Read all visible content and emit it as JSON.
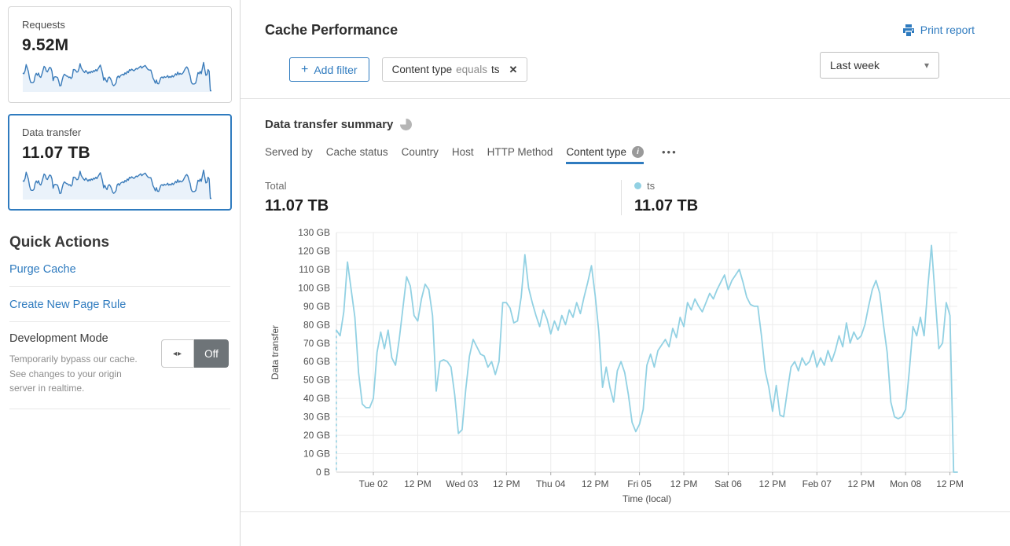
{
  "colors": {
    "accent_blue": "#2f7bbf",
    "sparkline_line": "#3b7cba",
    "sparkline_fill": "#eaf2fa",
    "series_blue": "#92d1e3",
    "selected_card_border": "#2f7bbf"
  },
  "icons": {
    "plus_glyph": "+",
    "close_glyph": "✕",
    "caret_glyph": "▾",
    "info_glyph": "i",
    "ellipsis_glyph": "•••",
    "toggle_arrows_glyph": "◂▸"
  },
  "sidebar": {
    "cards": [
      {
        "label": "Requests",
        "value": "9.52M",
        "selected": false
      },
      {
        "label": "Data transfer",
        "value": "11.07 TB",
        "selected": true
      }
    ],
    "quick_actions": {
      "title": "Quick Actions",
      "links": [
        {
          "label": "Purge Cache"
        },
        {
          "label": "Create New Page Rule"
        }
      ],
      "dev_mode": {
        "title": "Development Mode",
        "description": "Temporarily bypass our cache. See changes to your origin server in realtime.",
        "toggle_state": "Off"
      }
    }
  },
  "header": {
    "title": "Cache Performance",
    "print_label": "Print report",
    "add_filter_label": "Add filter",
    "filter_pill": {
      "field": "Content type",
      "operator": "equals",
      "value": "ts"
    },
    "time_range": "Last week"
  },
  "summary": {
    "title": "Data transfer summary",
    "tabs": [
      {
        "label": "Served by",
        "active": false
      },
      {
        "label": "Cache status",
        "active": false
      },
      {
        "label": "Country",
        "active": false
      },
      {
        "label": "Host",
        "active": false
      },
      {
        "label": "HTTP Method",
        "active": false
      },
      {
        "label": "Content type",
        "active": true,
        "info": true
      }
    ],
    "stats": [
      {
        "label": "Total",
        "value": "11.07 TB",
        "dot": false
      },
      {
        "label": "ts",
        "value": "11.07 TB",
        "dot": true
      }
    ]
  },
  "chart_data": {
    "type": "line",
    "title": "Data transfer summary",
    "xlabel": "Time (local)",
    "ylabel": "Data transfer",
    "unit": "GB",
    "ylim": [
      0,
      130
    ],
    "grid": true,
    "legend_position": "above-right",
    "y_ticks": [
      "0 B",
      "10 GB",
      "20 GB",
      "30 GB",
      "40 GB",
      "50 GB",
      "60 GB",
      "70 GB",
      "80 GB",
      "90 GB",
      "100 GB",
      "110 GB",
      "120 GB",
      "130 GB"
    ],
    "x_span_hours": 168,
    "x_ticks": [
      {
        "h": 10,
        "label": "Tue 02"
      },
      {
        "h": 22,
        "label": "12 PM"
      },
      {
        "h": 34,
        "label": "Wed 03"
      },
      {
        "h": 46,
        "label": "12 PM"
      },
      {
        "h": 58,
        "label": "Thu 04"
      },
      {
        "h": 70,
        "label": "12 PM"
      },
      {
        "h": 82,
        "label": "Fri 05"
      },
      {
        "h": 94,
        "label": "12 PM"
      },
      {
        "h": 106,
        "label": "Sat 06"
      },
      {
        "h": 118,
        "label": "12 PM"
      },
      {
        "h": 130,
        "label": "Feb 07"
      },
      {
        "h": 142,
        "label": "12 PM"
      },
      {
        "h": 154,
        "label": "Mon 08"
      },
      {
        "h": 166,
        "label": "12 PM"
      }
    ],
    "series": [
      {
        "name": "ts",
        "color": "#92d1e3",
        "total": "11.07 TB",
        "values_unit": "GB per hour (estimated from plot)",
        "values": [
          77,
          74,
          87,
          114,
          99,
          84,
          54,
          37,
          35,
          35,
          40,
          65,
          76,
          67,
          77,
          62,
          58,
          72,
          89,
          106,
          101,
          85,
          82,
          94,
          102,
          99,
          85,
          44,
          60,
          61,
          60,
          57,
          42,
          21,
          23,
          45,
          63,
          72,
          68,
          64,
          63,
          57,
          60,
          53,
          60,
          92,
          92,
          89,
          81,
          82,
          95,
          118,
          100,
          92,
          85,
          79,
          88,
          83,
          75,
          82,
          77,
          85,
          80,
          88,
          84,
          92,
          86,
          95,
          103,
          112,
          96,
          76,
          46,
          57,
          46,
          38,
          55,
          60,
          54,
          42,
          27,
          22,
          26,
          34,
          58,
          64,
          57,
          66,
          69,
          72,
          68,
          78,
          73,
          84,
          79,
          92,
          88,
          94,
          90,
          87,
          92,
          97,
          94,
          99,
          103,
          107,
          99,
          104,
          107,
          110,
          103,
          95,
          91,
          90,
          90,
          74,
          55,
          46,
          33,
          47,
          31,
          30,
          44,
          57,
          60,
          55,
          62,
          58,
          60,
          66,
          57,
          62,
          58,
          66,
          60,
          66,
          74,
          68,
          81,
          70,
          76,
          72,
          74,
          80,
          90,
          99,
          104,
          97,
          80,
          65,
          38,
          30,
          29,
          30,
          34,
          55,
          79,
          74,
          84,
          74,
          100,
          123,
          95,
          67,
          70,
          92,
          85,
          0,
          0
        ]
      }
    ],
    "start_boundary_dashed": true
  }
}
